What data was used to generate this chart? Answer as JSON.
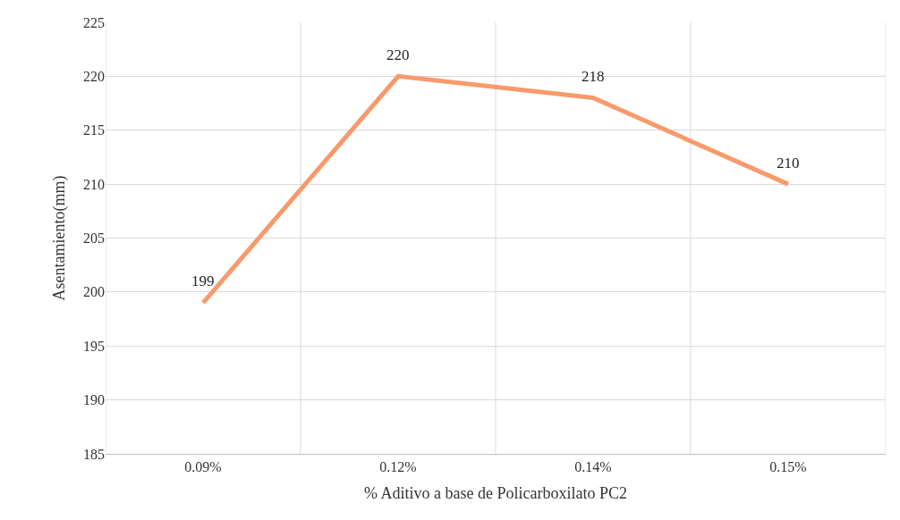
{
  "chart_data": {
    "type": "line",
    "xlabel": "% Aditivo a base de Policarboxilato PC2",
    "ylabel": "Asentamiento(mm)",
    "categories": [
      "0.09%",
      "0.12%",
      "0.14%",
      "0.15%"
    ],
    "series": [
      {
        "color": "#f79a6b",
        "values": [
          199,
          220,
          218,
          210
        ]
      }
    ],
    "ylim": [
      185,
      225
    ],
    "yticks": [
      185,
      190,
      195,
      200,
      205,
      210,
      215,
      220,
      225
    ],
    "grid": true,
    "data_labels": true,
    "marker": "none",
    "legend": false
  }
}
